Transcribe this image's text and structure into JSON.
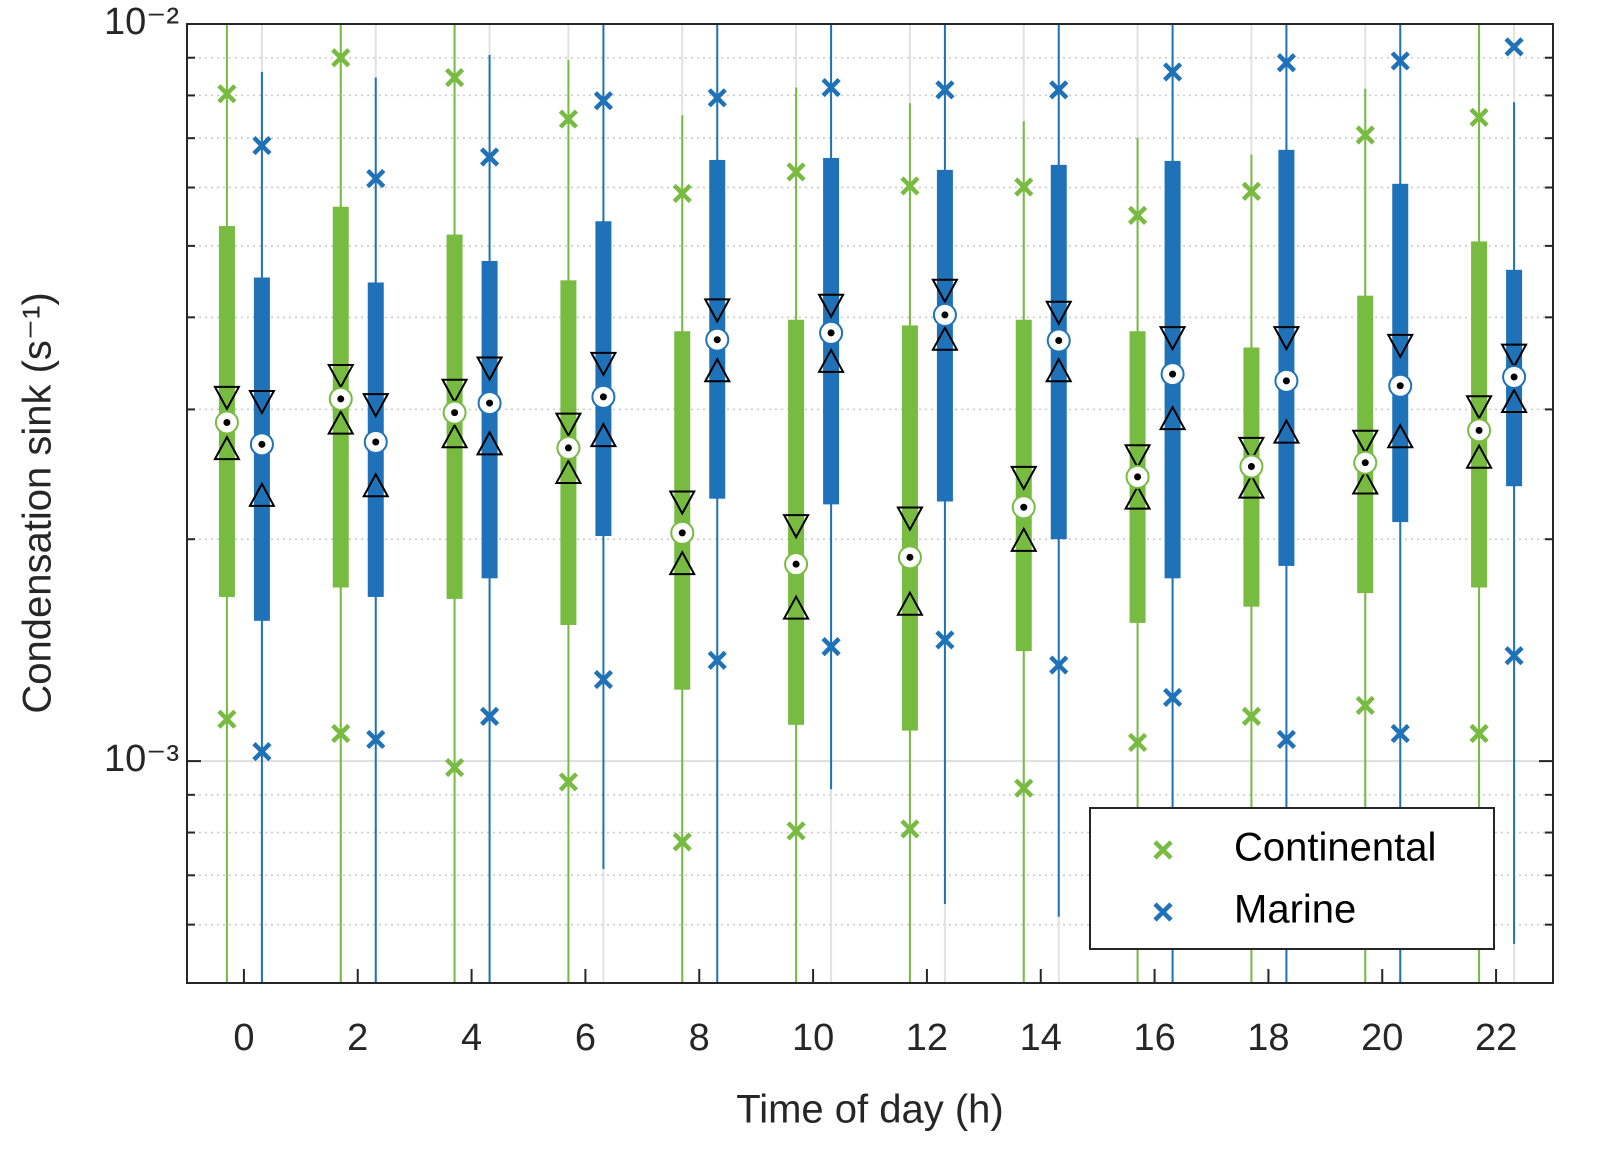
{
  "chart_data": {
    "type": "box",
    "x_label": "Time of day (h)",
    "y_label": "Condensation sink (s⁻¹)",
    "categories": [
      "0",
      "2",
      "4",
      "6",
      "8",
      "10",
      "12",
      "14",
      "16",
      "18",
      "20",
      "22"
    ],
    "log_scale": true,
    "ylim": [
      0.0005,
      0.01
    ],
    "yticks": [
      {
        "value": 0.001,
        "label": "10⁻³"
      },
      {
        "value": 0.01,
        "label": "10⁻²"
      }
    ],
    "minor_yticks": [
      0.0006,
      0.0007,
      0.0008,
      0.0009,
      0.002,
      0.003,
      0.004,
      0.005,
      0.006,
      0.007,
      0.008,
      0.009
    ],
    "grid": true,
    "legend_position": "lower right",
    "series": [
      {
        "name": "Continental",
        "color": "#77bb41",
        "whisker_low": [
          0.0005,
          0.0005,
          0.0005,
          0.0005,
          0.0005,
          0.0005,
          0.0005,
          0.0005,
          0.0005,
          0.0005,
          0.0005,
          0.0005
        ],
        "x_low": [
          0.00114,
          0.00109,
          0.00098,
          0.000937,
          0.000777,
          0.000804,
          0.000809,
          0.000919,
          0.00106,
          0.00115,
          0.00119,
          0.00109
        ],
        "q1": [
          0.00167,
          0.00172,
          0.00166,
          0.00153,
          0.00125,
          0.00112,
          0.0011,
          0.00141,
          0.00154,
          0.00162,
          0.00169,
          0.00172
        ],
        "notch_low": [
          0.00265,
          0.00287,
          0.00275,
          0.00246,
          0.00185,
          0.00161,
          0.00163,
          0.00199,
          0.00227,
          0.00235,
          0.00238,
          0.00258
        ],
        "median": [
          0.00288,
          0.0031,
          0.00297,
          0.00266,
          0.00204,
          0.00185,
          0.00189,
          0.00221,
          0.00243,
          0.00251,
          0.00254,
          0.00281
        ],
        "notch_high": [
          0.00312,
          0.00334,
          0.00319,
          0.00287,
          0.00225,
          0.00209,
          0.00214,
          0.00243,
          0.0026,
          0.00266,
          0.00272,
          0.00303
        ],
        "q3": [
          0.00532,
          0.00565,
          0.00518,
          0.00449,
          0.00383,
          0.00397,
          0.0039,
          0.00397,
          0.00383,
          0.00364,
          0.00428,
          0.00507
        ],
        "x_high": [
          0.00804,
          0.009,
          0.00846,
          0.00743,
          0.00589,
          0.0063,
          0.00603,
          0.00601,
          0.0055,
          0.00593,
          0.00707,
          0.00747
        ],
        "whisker_high": [
          0.01,
          0.01,
          0.01,
          0.00894,
          0.00752,
          0.0082,
          0.00781,
          0.00738,
          0.00701,
          0.00665,
          0.00817,
          0.01
        ]
      },
      {
        "name": "Marine",
        "color": "#1f72b8",
        "whisker_low": [
          0.0005,
          0.0005,
          0.0005,
          0.000714,
          0.0005,
          0.000916,
          0.00064,
          0.000615,
          0.0005,
          0.0005,
          0.0005,
          0.000565
        ],
        "x_low": [
          0.00103,
          0.00107,
          0.00115,
          0.00129,
          0.00137,
          0.00143,
          0.00146,
          0.00135,
          0.00122,
          0.00107,
          0.00109,
          0.00139
        ],
        "q1": [
          0.00155,
          0.00167,
          0.00177,
          0.00202,
          0.00227,
          0.00223,
          0.00225,
          0.002,
          0.00177,
          0.00184,
          0.00211,
          0.00236
        ],
        "notch_low": [
          0.00229,
          0.00236,
          0.00269,
          0.00276,
          0.00338,
          0.00348,
          0.00373,
          0.00338,
          0.00291,
          0.00279,
          0.00275,
          0.00307
        ],
        "median": [
          0.00269,
          0.00271,
          0.00306,
          0.00312,
          0.00373,
          0.00381,
          0.00403,
          0.00372,
          0.00335,
          0.00328,
          0.00323,
          0.00332
        ],
        "notch_high": [
          0.00308,
          0.00305,
          0.00342,
          0.00347,
          0.0041,
          0.00416,
          0.00436,
          0.00407,
          0.00376,
          0.00376,
          0.00367,
          0.00356
        ],
        "q3": [
          0.00453,
          0.00446,
          0.00477,
          0.0054,
          0.00654,
          0.00658,
          0.00634,
          0.00644,
          0.00652,
          0.00675,
          0.00607,
          0.00464
        ],
        "x_high": [
          0.00684,
          0.00617,
          0.0066,
          0.00787,
          0.00794,
          0.0082,
          0.00814,
          0.00814,
          0.00861,
          0.00886,
          0.00891,
          0.00931
        ],
        "whisker_high": [
          0.00861,
          0.00846,
          0.00908,
          0.01,
          0.01,
          0.01,
          0.01,
          0.01,
          0.01,
          0.01,
          0.01,
          0.00783
        ]
      }
    ]
  }
}
